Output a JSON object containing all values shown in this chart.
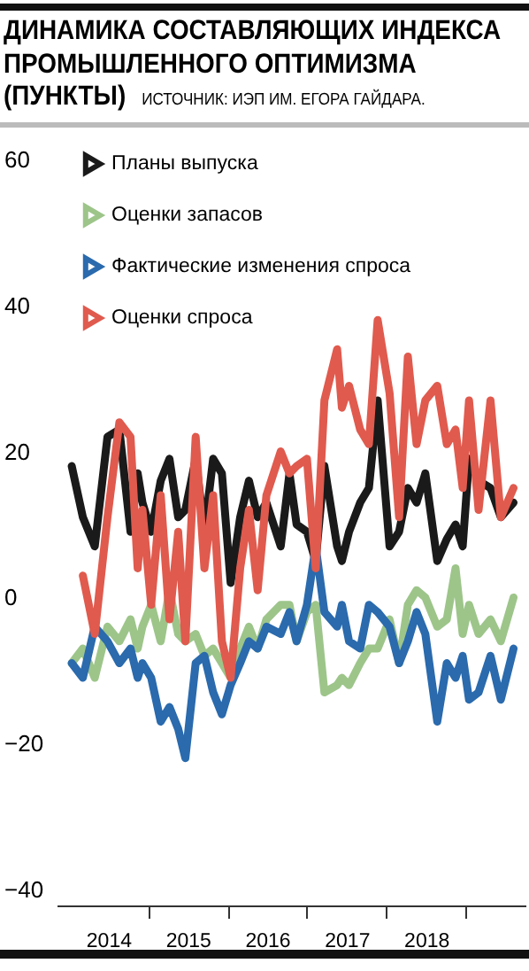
{
  "chart_data": {
    "type": "line",
    "title": "ДИНАМИКА СОСТАВЛЯЮЩИХ ИНДЕКСА ПРОМЫШЛЕННОГО ОПТИМИЗМА (ПУНКТЫ)",
    "subtitle": "ИСТОЧНИК: ИЭП ИМ. ЕГОРА ГАЙДАРА.",
    "x": [
      2014.04,
      2014.18,
      2014.33,
      2014.49,
      2014.64,
      2014.78,
      2014.87,
      2014.93,
      2015.04,
      2015.16,
      2015.27,
      2015.38,
      2015.47,
      2015.6,
      2015.71,
      2015.82,
      2015.93,
      2016.04,
      2016.16,
      2016.27,
      2016.38,
      2016.49,
      2016.67,
      2016.78,
      2016.87,
      2017.0,
      2017.11,
      2017.22,
      2017.38,
      2017.44,
      2017.53,
      2017.67,
      2017.78,
      2017.89,
      2018.04,
      2018.16,
      2018.27,
      2018.38,
      2018.49,
      2018.64,
      2018.76,
      2018.87,
      2018.96,
      2019.04,
      2019.16,
      2019.31,
      2019.44,
      2019.6
    ],
    "series": [
      {
        "name": "Планы выпуска",
        "color": "#1a1a1a",
        "values": [
          18,
          11,
          7,
          22,
          23,
          9,
          17,
          13,
          9,
          16,
          19,
          11,
          12,
          19,
          9,
          19,
          17,
          2,
          11,
          16,
          11,
          13,
          7,
          17,
          10,
          9,
          5,
          18,
          7,
          5,
          9,
          13,
          15,
          27,
          7,
          9,
          15,
          13,
          17,
          5,
          8,
          10,
          7,
          19,
          16,
          15,
          11,
          13
        ]
      },
      {
        "name": "Оценки запасов",
        "color": "#9dc58a",
        "values": [
          -9,
          -7,
          -11,
          -4,
          -6,
          -3,
          -7,
          -4,
          -1,
          -6,
          1,
          -5,
          -6,
          -5,
          -8,
          -7,
          -9,
          -11,
          -7,
          -4,
          -7,
          -3,
          -1,
          -1,
          -6,
          -2,
          -1,
          -13,
          -12,
          -11,
          -12,
          -9,
          -7,
          -7,
          -3,
          -9,
          -1,
          1,
          0,
          -4,
          -3,
          4,
          -5,
          -1,
          -5,
          -3,
          -6,
          0
        ]
      },
      {
        "name": "Фактические изменения спроса",
        "color": "#2a6aad",
        "values": [
          -9,
          -11,
          -4,
          -6,
          -9,
          -7,
          -11,
          -9,
          -11,
          -17,
          -15,
          -18,
          -22,
          -9,
          -8,
          -13,
          -16,
          -12,
          -9,
          -6,
          -7,
          -4,
          -5,
          -2,
          -6,
          -1,
          7,
          -2,
          -4,
          -1,
          -6,
          -7,
          -1,
          -2,
          -4,
          -9,
          -6,
          -2,
          -5,
          -17,
          -9,
          -11,
          -8,
          -14,
          -13,
          -8,
          -14,
          -7
        ]
      },
      {
        "name": "Оценки спроса",
        "color": "#e05a4e",
        "values": [
          null,
          3,
          -5,
          11,
          24,
          22,
          4,
          12,
          -1,
          14,
          -3,
          9,
          -6,
          22,
          4,
          14,
          -6,
          -11,
          4,
          12,
          1,
          14,
          20,
          17,
          18,
          19,
          4,
          27,
          34,
          26,
          29,
          23,
          21,
          38,
          28,
          11,
          33,
          21,
          27,
          29,
          21,
          23,
          15,
          27,
          12,
          27,
          11,
          15
        ]
      }
    ],
    "xlim": [
      2013.85,
      2019.75
    ],
    "xticks": [
      {
        "value": 2014.5,
        "label": "2014"
      },
      {
        "value": 2015.5,
        "label": "2015"
      },
      {
        "value": 2016.5,
        "label": "2016"
      },
      {
        "value": 2017.5,
        "label": "2017"
      },
      {
        "value": 2018.5,
        "label": "2018"
      },
      {
        "value": 2015,
        "label": null
      },
      {
        "value": 2016,
        "label": null
      },
      {
        "value": 2017,
        "label": null
      },
      {
        "value": 2018,
        "label": null
      },
      {
        "value": 2019,
        "label": null
      }
    ],
    "ylim": [
      -40,
      60
    ],
    "yticks": [
      -40,
      -20,
      0,
      20,
      40,
      60
    ],
    "legend": "top left",
    "marker": "none",
    "line_style": "solid",
    "grid": false
  }
}
